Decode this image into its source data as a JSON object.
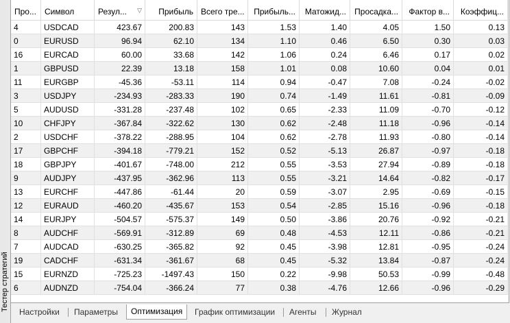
{
  "side_label": "Тестер стратегий",
  "table": {
    "columns": [
      "Про...",
      "Символ",
      "Резул...",
      "Прибыль",
      "Всего тре...",
      "Прибыль...",
      "Матожид...",
      "Просадка...",
      "Фактор в...",
      "Коэффиц..."
    ],
    "rows": [
      [
        "4",
        "USDCAD",
        "423.67",
        "200.83",
        "143",
        "1.53",
        "1.40",
        "4.05",
        "1.50",
        "0.13"
      ],
      [
        "0",
        "EURUSD",
        "96.94",
        "62.10",
        "134",
        "1.10",
        "0.46",
        "6.50",
        "0.30",
        "0.03"
      ],
      [
        "16",
        "EURCAD",
        "60.00",
        "33.68",
        "142",
        "1.06",
        "0.24",
        "6.46",
        "0.17",
        "0.02"
      ],
      [
        "1",
        "GBPUSD",
        "22.39",
        "13.18",
        "158",
        "1.01",
        "0.08",
        "10.60",
        "0.04",
        "0.01"
      ],
      [
        "11",
        "EURGBP",
        "-45.36",
        "-53.11",
        "114",
        "0.94",
        "-0.47",
        "7.08",
        "-0.24",
        "-0.02"
      ],
      [
        "3",
        "USDJPY",
        "-234.93",
        "-283.33",
        "190",
        "0.74",
        "-1.49",
        "11.61",
        "-0.81",
        "-0.09"
      ],
      [
        "5",
        "AUDUSD",
        "-331.28",
        "-237.48",
        "102",
        "0.65",
        "-2.33",
        "11.09",
        "-0.70",
        "-0.12"
      ],
      [
        "10",
        "CHFJPY",
        "-367.84",
        "-322.62",
        "130",
        "0.62",
        "-2.48",
        "11.18",
        "-0.96",
        "-0.14"
      ],
      [
        "2",
        "USDCHF",
        "-378.22",
        "-288.95",
        "104",
        "0.62",
        "-2.78",
        "11.93",
        "-0.80",
        "-0.14"
      ],
      [
        "17",
        "GBPCHF",
        "-394.18",
        "-779.21",
        "152",
        "0.52",
        "-5.13",
        "26.87",
        "-0.97",
        "-0.18"
      ],
      [
        "18",
        "GBPJPY",
        "-401.67",
        "-748.00",
        "212",
        "0.55",
        "-3.53",
        "27.94",
        "-0.89",
        "-0.18"
      ],
      [
        "9",
        "AUDJPY",
        "-437.95",
        "-362.96",
        "113",
        "0.55",
        "-3.21",
        "14.64",
        "-0.82",
        "-0.17"
      ],
      [
        "13",
        "EURCHF",
        "-447.86",
        "-61.44",
        "20",
        "0.59",
        "-3.07",
        "2.95",
        "-0.69",
        "-0.15"
      ],
      [
        "12",
        "EURAUD",
        "-460.20",
        "-435.67",
        "153",
        "0.54",
        "-2.85",
        "15.16",
        "-0.96",
        "-0.18"
      ],
      [
        "14",
        "EURJPY",
        "-504.57",
        "-575.37",
        "149",
        "0.50",
        "-3.86",
        "20.76",
        "-0.92",
        "-0.21"
      ],
      [
        "8",
        "AUDCHF",
        "-569.91",
        "-312.89",
        "69",
        "0.48",
        "-4.53",
        "12.11",
        "-0.86",
        "-0.21"
      ],
      [
        "7",
        "AUDCAD",
        "-630.25",
        "-365.82",
        "92",
        "0.45",
        "-3.98",
        "12.81",
        "-0.95",
        "-0.24"
      ],
      [
        "19",
        "CADCHF",
        "-631.34",
        "-361.67",
        "68",
        "0.45",
        "-5.32",
        "13.84",
        "-0.87",
        "-0.24"
      ],
      [
        "15",
        "EURNZD",
        "-725.23",
        "-1497.43",
        "150",
        "0.22",
        "-9.98",
        "50.53",
        "-0.99",
        "-0.48"
      ],
      [
        "6",
        "AUDNZD",
        "-754.04",
        "-366.24",
        "77",
        "0.38",
        "-4.76",
        "12.66",
        "-0.96",
        "-0.29"
      ]
    ]
  },
  "tabs": [
    "Настройки",
    "Параметры",
    "Оптимизация",
    "График оптимизации",
    "Агенты",
    "Журнал"
  ],
  "active_tab": 2
}
